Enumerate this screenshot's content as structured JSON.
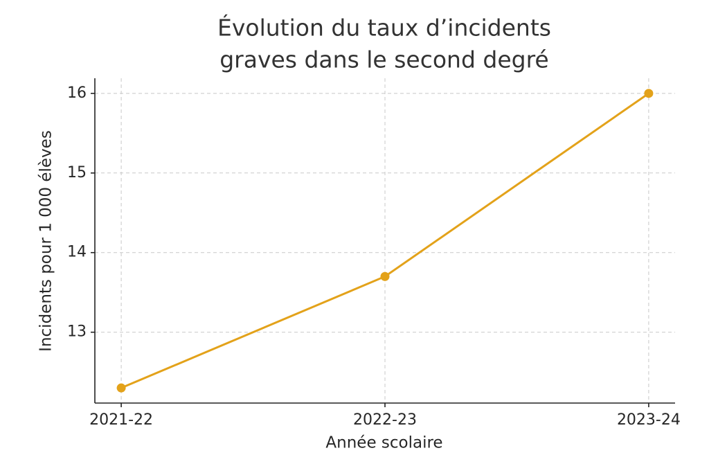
{
  "chart_data": {
    "type": "line",
    "title": [
      "Évolution du taux d’incidents",
      "graves dans le second degré"
    ],
    "x_label": "Année scolaire",
    "y_label": "Incidents pour 1 000 élèves",
    "categories": [
      "2021-22",
      "2022-23",
      "2023-24"
    ],
    "series": [
      {
        "color": "#e3a21a",
        "values": [
          12.3,
          13.7,
          16.0
        ]
      }
    ],
    "ylim": [
      12.11,
      16.19
    ],
    "yticks": [
      13,
      14,
      15,
      16
    ],
    "grid": true
  }
}
